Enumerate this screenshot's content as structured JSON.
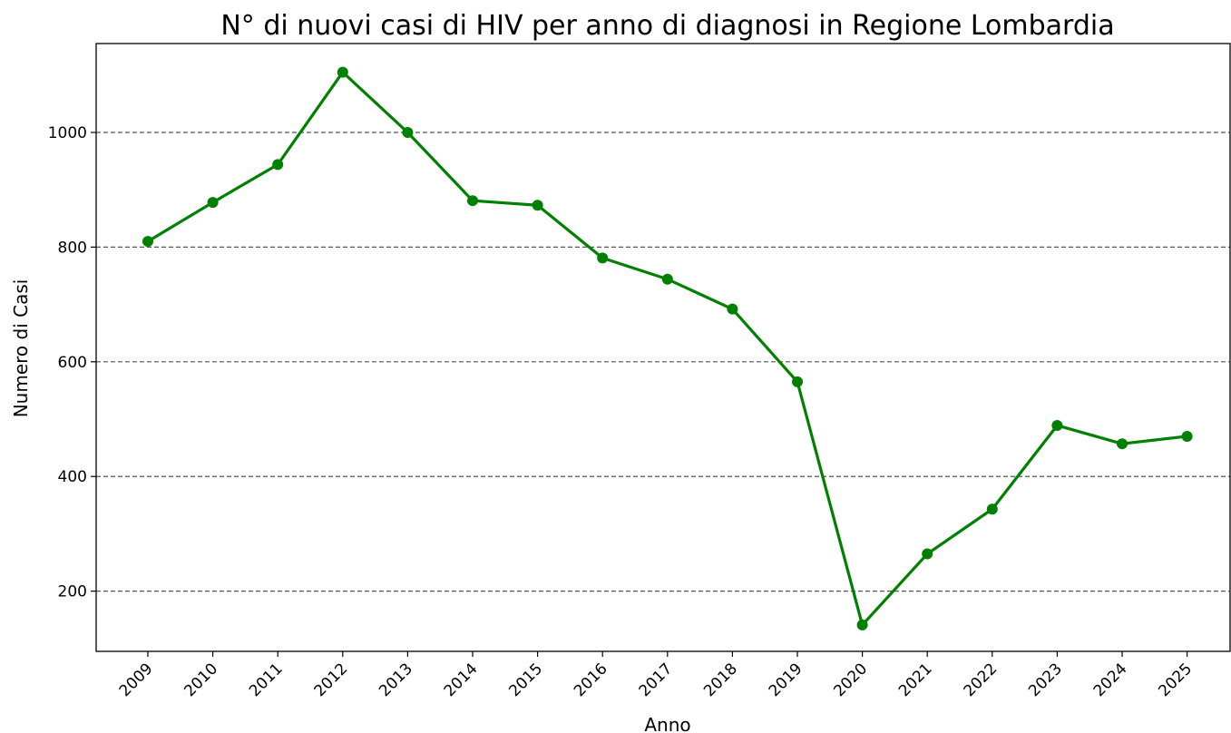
{
  "chart_data": {
    "type": "line",
    "title": "N° di nuovi casi di HIV per anno di diagnosi in Regione Lombardia",
    "x_label": "Anno",
    "y_label": "Numero di Casi",
    "categories": [
      "2009",
      "2010",
      "2011",
      "2012",
      "2013",
      "2014",
      "2015",
      "2016",
      "2017",
      "2018",
      "2019",
      "2020",
      "2021",
      "2022",
      "2023",
      "2024",
      "2025"
    ],
    "values": [
      810,
      878,
      944,
      1105,
      1000,
      881,
      873,
      781,
      744,
      692,
      565,
      141,
      265,
      343,
      489,
      457,
      470
    ],
    "color": "#008000",
    "ylim": [
      95,
      1155
    ],
    "yticks": [
      200,
      400,
      600,
      800,
      1000
    ],
    "grid": true
  }
}
